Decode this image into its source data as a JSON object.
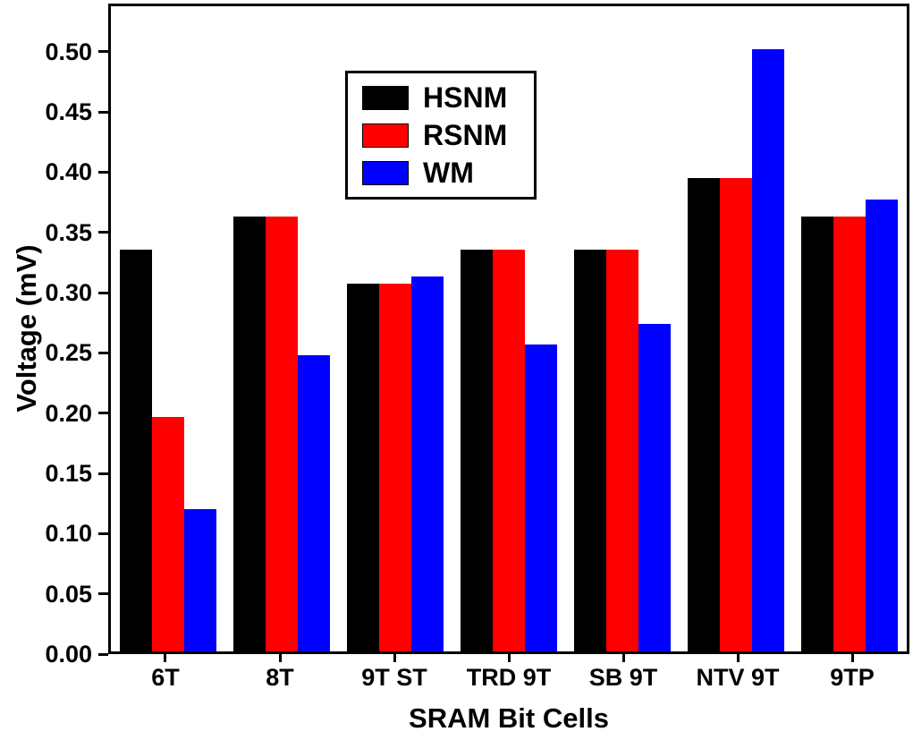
{
  "chart_data": {
    "type": "bar",
    "title": "",
    "xlabel": "SRAM Bit Cells",
    "ylabel": "Voltage (mV)",
    "categories": [
      "6T",
      "8T",
      "9T ST",
      "TRD 9T",
      "SB 9T",
      "NTV 9T",
      "9TP"
    ],
    "series": [
      {
        "name": "HSNM",
        "color": "#000000",
        "values": [
          0.336,
          0.364,
          0.308,
          0.336,
          0.336,
          0.396,
          0.364
        ]
      },
      {
        "name": "RSNM",
        "color": "#ff0000",
        "values": [
          0.196,
          0.364,
          0.308,
          0.336,
          0.336,
          0.396,
          0.364
        ]
      },
      {
        "name": "WM",
        "color": "#0000ff",
        "values": [
          0.119,
          0.248,
          0.314,
          0.257,
          0.274,
          0.504,
          0.378
        ]
      }
    ],
    "ylim": [
      0,
      0.54
    ],
    "yticks": [
      0.0,
      0.05,
      0.1,
      0.15,
      0.2,
      0.25,
      0.3,
      0.35,
      0.4,
      0.45,
      0.5
    ],
    "ytick_labels": [
      "0.00",
      "0.05",
      "0.10",
      "0.15",
      "0.20",
      "0.25",
      "0.30",
      "0.35",
      "0.40",
      "0.45",
      "0.50"
    ],
    "grid": false,
    "legend_position": "upper-left-inside"
  }
}
